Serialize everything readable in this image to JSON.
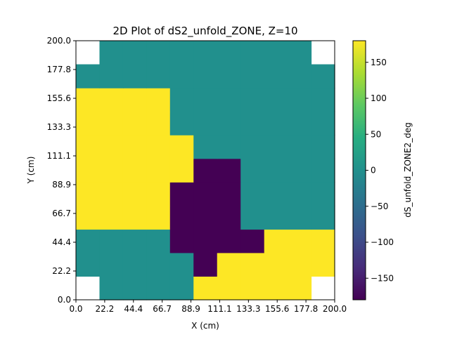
{
  "chart_data": {
    "type": "heatmap",
    "title": "2D Plot of dS2_unfold_ZONE, Z=10",
    "xlabel": "X (cm)",
    "ylabel": "Y (cm)",
    "xlim": [
      0,
      200
    ],
    "ylim": [
      0,
      200
    ],
    "x_edges": [
      0,
      18.2,
      36.4,
      54.5,
      72.7,
      90.9,
      109.1,
      127.3,
      145.5,
      163.6,
      181.8,
      200
    ],
    "y_edges": [
      0,
      18.2,
      36.4,
      54.5,
      72.7,
      90.9,
      109.1,
      127.3,
      145.5,
      163.6,
      181.8,
      200
    ],
    "xticks": [
      "0.0",
      "22.2",
      "44.4",
      "66.7",
      "88.9",
      "111.1",
      "133.3",
      "155.6",
      "177.8",
      "200.0"
    ],
    "yticks": [
      "0.0",
      "22.2",
      "44.4",
      "66.7",
      "88.9",
      "111.1",
      "133.3",
      "155.6",
      "177.8",
      "200.0"
    ],
    "values_rows_bottom_to_top": [
      [
        null,
        0,
        0,
        0,
        0,
        180,
        180,
        180,
        180,
        180,
        null
      ],
      [
        0,
        0,
        0,
        0,
        0,
        -180,
        180,
        180,
        180,
        180,
        180
      ],
      [
        0,
        0,
        0,
        0,
        -180,
        -180,
        -180,
        -180,
        180,
        180,
        180
      ],
      [
        180,
        180,
        180,
        180,
        -180,
        -180,
        -180,
        0,
        0,
        0,
        0
      ],
      [
        180,
        180,
        180,
        180,
        -180,
        -180,
        -180,
        0,
        0,
        0,
        0
      ],
      [
        180,
        180,
        180,
        180,
        180,
        -180,
        -180,
        0,
        0,
        0,
        0
      ],
      [
        180,
        180,
        180,
        180,
        180,
        0,
        0,
        0,
        0,
        0,
        0
      ],
      [
        180,
        180,
        180,
        180,
        0,
        0,
        0,
        0,
        0,
        0,
        0
      ],
      [
        180,
        180,
        180,
        180,
        0,
        0,
        0,
        0,
        0,
        0,
        0
      ],
      [
        0,
        0,
        0,
        0,
        0,
        0,
        0,
        0,
        0,
        0,
        0
      ],
      [
        null,
        0,
        0,
        0,
        0,
        0,
        0,
        0,
        0,
        0,
        null
      ]
    ],
    "colorbar": {
      "label": "dS_unfold_ZONE2_deg",
      "range": [
        -180,
        180
      ],
      "ticks": [
        "−150",
        "−100",
        "−50",
        "0",
        "50",
        "100",
        "150"
      ],
      "tick_values": [
        -150,
        -100,
        -50,
        0,
        50,
        100,
        150
      ],
      "colormap": "viridis"
    }
  }
}
